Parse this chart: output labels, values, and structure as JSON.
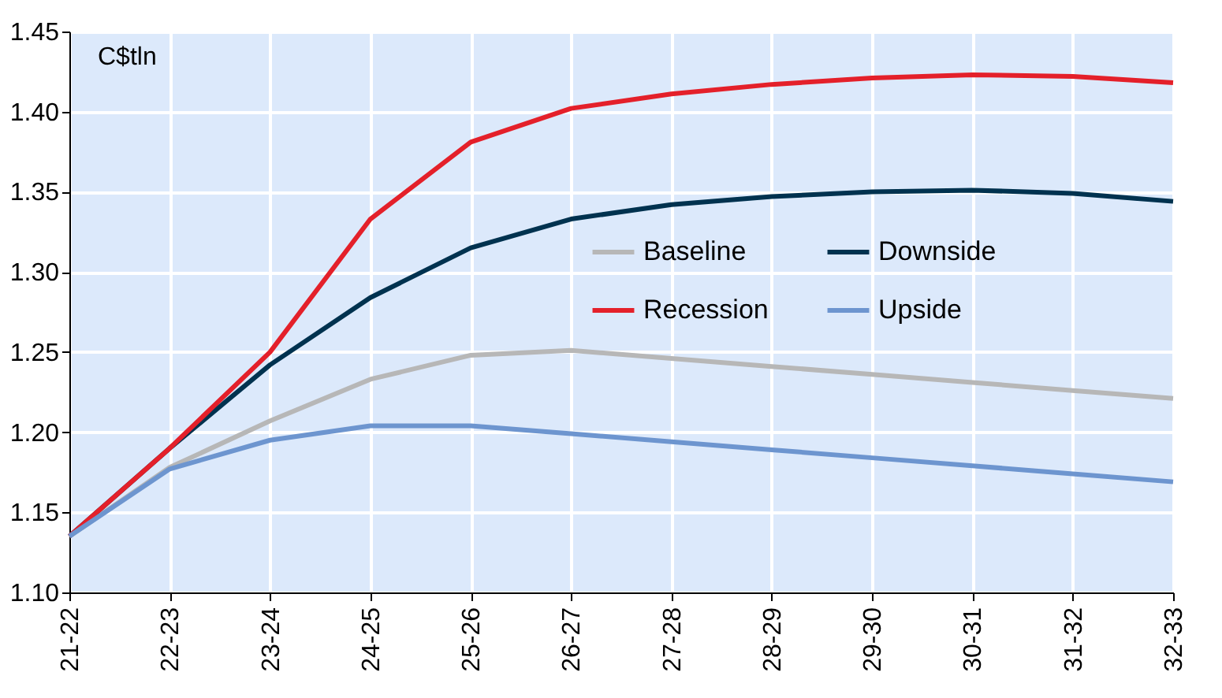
{
  "chart_data": {
    "type": "line",
    "categories": [
      "21-22",
      "22-23",
      "23-24",
      "24-25",
      "25-26",
      "26-27",
      "27-28",
      "28-29",
      "29-30",
      "30-31",
      "31-32",
      "32-33"
    ],
    "series": [
      {
        "name": "Baseline",
        "color": "#b7b7b7",
        "values": [
          1.135,
          1.178,
          1.207,
          1.233,
          1.248,
          1.251,
          1.246,
          1.241,
          1.236,
          1.231,
          1.226,
          1.221
        ]
      },
      {
        "name": "Downside",
        "color": "#00324f",
        "values": [
          1.135,
          1.19,
          1.242,
          1.284,
          1.315,
          1.333,
          1.342,
          1.347,
          1.35,
          1.351,
          1.349,
          1.344
        ]
      },
      {
        "name": "Recession",
        "color": "#e4202a",
        "values": [
          1.135,
          1.19,
          1.25,
          1.333,
          1.381,
          1.402,
          1.411,
          1.417,
          1.421,
          1.423,
          1.422,
          1.418
        ]
      },
      {
        "name": "Upside",
        "color": "#6d95cf",
        "values": [
          1.135,
          1.177,
          1.195,
          1.204,
          1.204,
          1.199,
          1.194,
          1.189,
          1.184,
          1.179,
          1.174,
          1.169
        ]
      }
    ],
    "ylim": [
      1.1,
      1.45
    ],
    "yticks": [
      {
        "value": 1.1,
        "label": "1.10"
      },
      1.15,
      {
        "value": 1.2,
        "label": "1.20"
      },
      1.25,
      {
        "value": 1.3,
        "label": "1.30"
      },
      1.35,
      {
        "value": 1.4,
        "label": "1.40"
      },
      1.45
    ],
    "annotations": [
      "C$tln"
    ],
    "grid": true,
    "legend": "right",
    "marker": "none",
    "line_style": "solid"
  }
}
